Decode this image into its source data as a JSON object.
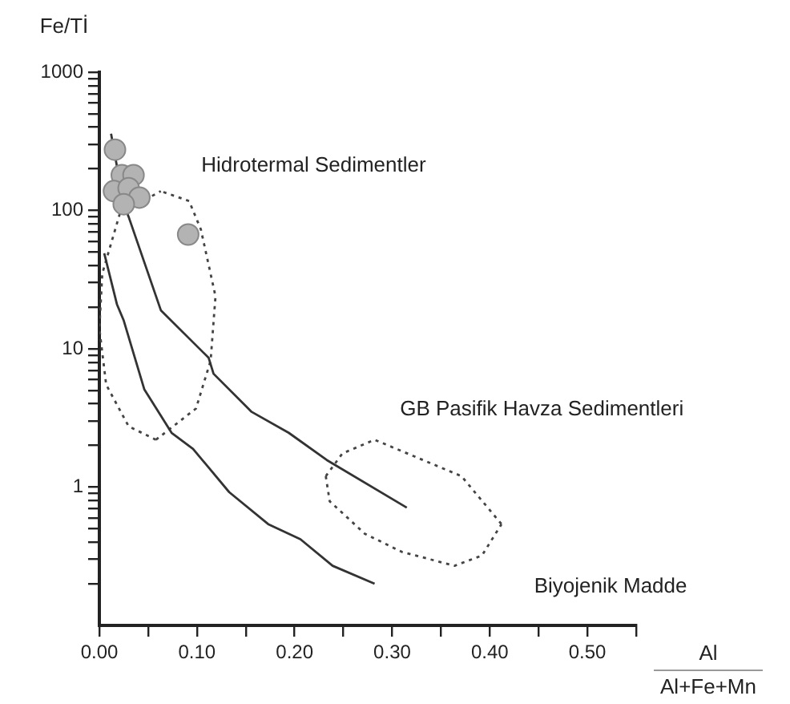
{
  "chart_data": {
    "type": "scatter",
    "ylabel": "Fe/Tİ",
    "xlabel": "Al\nAl+Fe+Mn",
    "log": "y",
    "grid": false,
    "legend": false,
    "xlim": [
      0,
      0.55
    ],
    "ylim": [
      0.1,
      1000
    ],
    "xticks": [
      {
        "value": 0,
        "label": "0.00"
      },
      {
        "value": 0.05,
        "label": null
      },
      {
        "value": 0.1,
        "label": "0.10"
      },
      {
        "value": 0.15,
        "label": null
      },
      {
        "value": 0.2,
        "label": "0.20"
      },
      {
        "value": 0.25,
        "label": null
      },
      {
        "value": 0.3,
        "label": "0.30"
      },
      {
        "value": 0.35,
        "label": null
      },
      {
        "value": 0.4,
        "label": "0.40"
      },
      {
        "value": 0.45,
        "label": null
      },
      {
        "value": 0.5,
        "label": "0.50"
      },
      {
        "value": 0.55,
        "label": null
      }
    ],
    "yticks": [
      {
        "value": 0.2,
        "label": null
      },
      {
        "value": 0.3,
        "label": null
      },
      {
        "value": 0.4,
        "label": null
      },
      {
        "value": 0.5,
        "label": null
      },
      {
        "value": 0.6,
        "label": null
      },
      {
        "value": 0.7,
        "label": null
      },
      {
        "value": 0.8,
        "label": null
      },
      {
        "value": 0.9,
        "label": null
      },
      1,
      {
        "value": 2,
        "label": null
      },
      {
        "value": 3,
        "label": null
      },
      {
        "value": 4,
        "label": null
      },
      {
        "value": 5,
        "label": null
      },
      {
        "value": 6,
        "label": null
      },
      {
        "value": 7,
        "label": null
      },
      {
        "value": 8,
        "label": null
      },
      {
        "value": 9,
        "label": null
      },
      10,
      {
        "value": 20,
        "label": null
      },
      {
        "value": 30,
        "label": null
      },
      {
        "value": 40,
        "label": null
      },
      {
        "value": 50,
        "label": null
      },
      {
        "value": 60,
        "label": null
      },
      {
        "value": 70,
        "label": null
      },
      {
        "value": 80,
        "label": null
      },
      {
        "value": 90,
        "label": null
      },
      100,
      {
        "value": 200,
        "label": null
      },
      {
        "value": 300,
        "label": null
      },
      {
        "value": 400,
        "label": null
      },
      {
        "value": 500,
        "label": null
      },
      {
        "value": 600,
        "label": null
      },
      {
        "value": 700,
        "label": null
      },
      {
        "value": 800,
        "label": null
      },
      {
        "value": 900,
        "label": null
      },
      1000
    ],
    "series": [
      {
        "type": "scatter",
        "marker": "circle",
        "color": "#b3b3b3",
        "x": [
          0.016,
          0.023,
          0.035,
          0.015,
          0.03,
          0.041,
          0.025,
          0.091
        ],
        "values": [
          275,
          180,
          180,
          138,
          145,
          124,
          111,
          67
        ]
      },
      {
        "type": "line",
        "marker": "none",
        "line_style": "solid",
        "color": "#333333",
        "x": [
          0.012,
          0.025,
          0.03,
          0.063,
          0.112,
          0.117,
          0.156,
          0.194,
          0.233,
          0.315
        ],
        "values": [
          359,
          111,
          90,
          19,
          8.6,
          6.6,
          3.5,
          2.47,
          1.57,
          0.71
        ]
      },
      {
        "type": "line",
        "marker": "none",
        "line_style": "solid",
        "color": "#333333",
        "x": [
          0.005,
          0.018,
          0.025,
          0.046,
          0.074,
          0.096,
          0.133,
          0.173,
          0.206,
          0.239,
          0.282
        ],
        "values": [
          49,
          21,
          16,
          5.1,
          2.47,
          1.89,
          0.92,
          0.54,
          0.42,
          0.27,
          0.2
        ]
      },
      {
        "type": "line",
        "marker": "none",
        "line_style": "dotted",
        "color": "#444444",
        "x": [
          0.058,
          0.099,
          0.114,
          0.119,
          0.104,
          0.092,
          0.063
        ],
        "values": [
          2.2,
          3.7,
          8.2,
          24,
          73,
          117,
          138
        ]
      },
      {
        "type": "line",
        "marker": "none",
        "line_style": "dotted",
        "color": "#444444",
        "x": [
          0.058,
          0.03,
          0.007,
          0,
          0.003,
          0.021,
          0.063
        ],
        "values": [
          2.2,
          2.75,
          5.5,
          14,
          35,
          95,
          138
        ]
      },
      {
        "type": "line",
        "marker": "none",
        "line_style": "dotted",
        "color": "#444444",
        "x": [
          0.232,
          0.249,
          0.282,
          0.371,
          0.412
        ],
        "values": [
          1.2,
          1.75,
          2.2,
          1.2,
          0.54
        ]
      },
      {
        "type": "line",
        "marker": "none",
        "line_style": "dotted",
        "color": "#444444",
        "x": [
          0.232,
          0.236,
          0.272,
          0.31,
          0.364,
          0.392,
          0.412
        ],
        "values": [
          1.2,
          0.79,
          0.46,
          0.34,
          0.27,
          0.32,
          0.54
        ]
      }
    ],
    "annotations": [
      "Hidrotermal Sedimentler",
      "GB Pasifik Havza Sedimentleri",
      "Biyojenik Madde"
    ]
  }
}
